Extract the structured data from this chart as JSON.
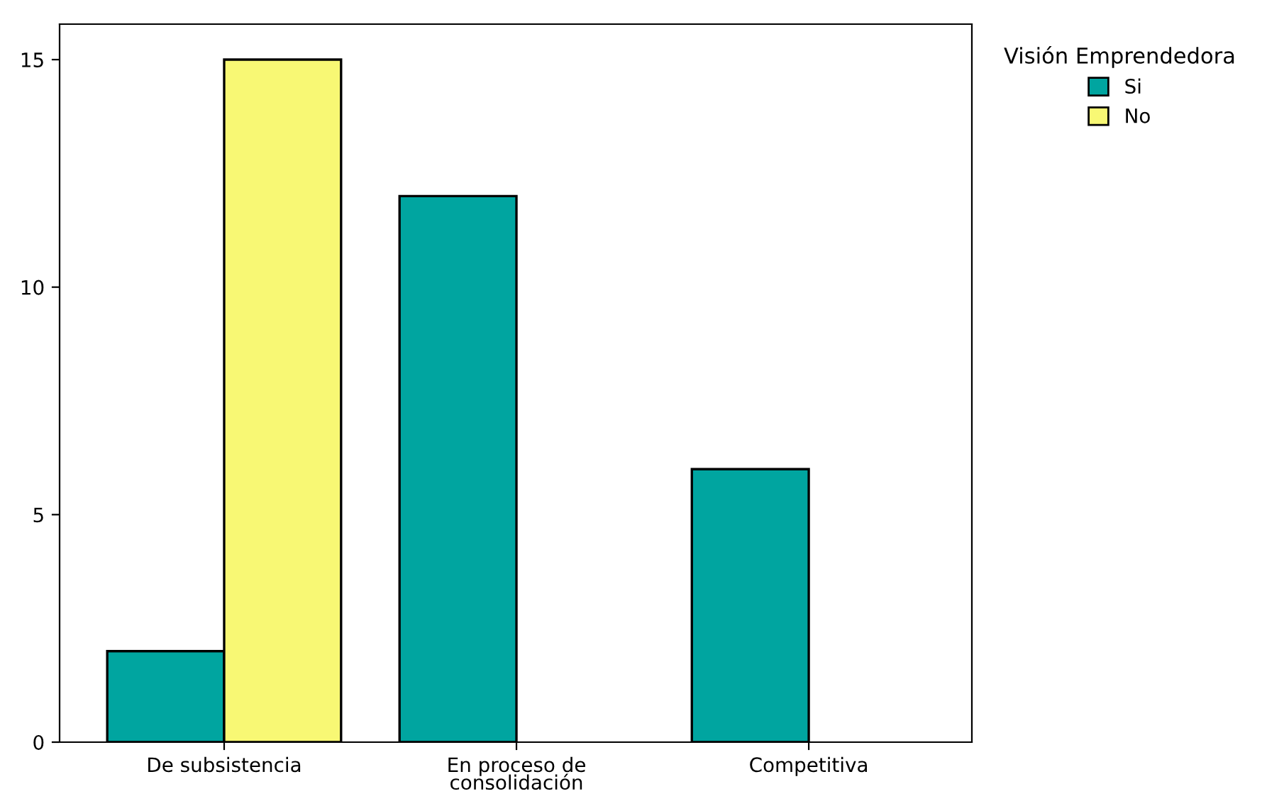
{
  "chart_data": {
    "type": "bar",
    "categories": [
      "De subsistencia",
      "En proceso de\nconsolidación",
      "Competitiva"
    ],
    "series": [
      {
        "name": "Si",
        "color": "#00a5a0",
        "values": [
          2,
          12,
          6
        ]
      },
      {
        "name": "No",
        "color": "#f8f874",
        "values": [
          15,
          0,
          0
        ]
      }
    ],
    "ylim": [
      0,
      15.78
    ],
    "yticks": [
      0,
      5,
      10,
      15
    ],
    "legend_title": "Visión Emprendedora",
    "legend": "right",
    "grid": false
  }
}
